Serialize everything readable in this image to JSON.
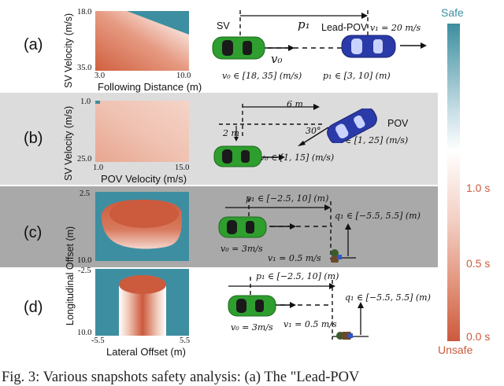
{
  "panels": {
    "a": {
      "label": "(a)",
      "ylabel": "SV Velocity (m/s)",
      "xlabel": "Following Distance (m)",
      "y_top": "18.0",
      "y_bottom": "35.0",
      "x_left": "3.0",
      "x_right": "10.0",
      "sv": "SV",
      "lead": "Lead-POV",
      "p1": "p₁",
      "v1": "v₁ = 20 m/s",
      "v0": "v₀",
      "v0_range": "v₀ ∈ [18, 35] (m/s)",
      "p1_range": "p₁ ∈ [3, 10] (m)"
    },
    "b": {
      "label": "(b)",
      "ylabel": "SV Velocity (m/s)",
      "xlabel": "POV Velocity (m/s)",
      "y_top": "1.0",
      "y_bottom": "25.0",
      "x_left": "1.0",
      "x_right": "15.0",
      "dist": "6 m",
      "lat": "2 m",
      "angle": "30°",
      "pov": "POV",
      "v1_range": "v₁ ∈ [1, 25] (m/s)",
      "v0_range": "v₀ ∈ [1, 15] (m/s)"
    },
    "c": {
      "label": "(c)",
      "ylabel": "Longitudinal Offset (m)",
      "y_top": "2.5",
      "y_bottom": "10.0",
      "p1_range": "p₁ ∈ [−2.5, 10] (m)",
      "q1_range": "q₁ ∈ [−5.5, 5.5] (m)",
      "v0": "v₀ = 3m/s",
      "v1": "v₁ = 0.5 m/s"
    },
    "d": {
      "label": "(d)",
      "y_top": "-2.5",
      "y_bottom": "10.0",
      "x_left": "-5.5",
      "x_right": "5.5",
      "xlabel": "Lateral Offset (m)",
      "p1_range": "p₁ ∈ [−2.5, 10] (m)",
      "q1_range": "q₁ ∈ [−5.5, 5.5] (m)",
      "v0": "v₀ = 3m/s",
      "v1": "v₁ = 0.5 m/s"
    }
  },
  "colorbar": {
    "safe": "Safe",
    "t1": "1.0 s",
    "t05": "0.5 s",
    "t0": "0.0 s",
    "unsafe": "Unsafe"
  },
  "caption": "Fig. 3: Various snapshots safety analysis: (a) The \"Lead-POV",
  "colors": {
    "safe": "#3d8ea0",
    "unsafe": "#cc5a3d",
    "panel_b_bg": "#dcdcdc",
    "panel_c_bg": "#a9a9a9",
    "car_green": "#2e9e2e",
    "car_blue": "#2a3aa8"
  }
}
